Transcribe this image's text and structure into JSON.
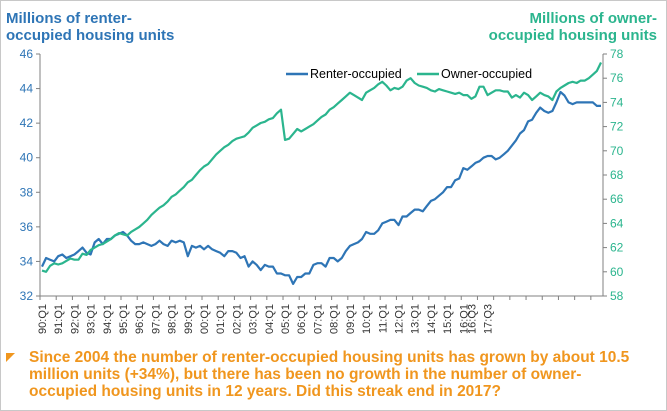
{
  "left_axis_title": [
    "Millions of renter-",
    "occupied housing units"
  ],
  "right_axis_title": [
    "Millions of owner-",
    "occupied housing units"
  ],
  "caption": "Since 2004 the number of renter-occupied housing units has grown by about 10.5 million units (+34%), but there has been no growth in the number of owner-occupied housing units in 12 years. Did this streak end in 2017?",
  "colors": {
    "renter": "#2e75b6",
    "owner": "#2bb58e",
    "caption": "#f0961e",
    "axis": "#808080"
  },
  "chart_data": {
    "type": "line",
    "legend": {
      "placement": "top-right",
      "entries": [
        "Renter-occupied",
        "Owner-occupied"
      ]
    },
    "x_tick_labels": [
      "90:Q1",
      "91:Q1",
      "92:Q1",
      "93:Q1",
      "94:Q1",
      "95:Q1",
      "96:Q1",
      "97:Q1",
      "98:Q1",
      "99:Q1",
      "00:Q1",
      "01:Q1",
      "02:Q1",
      "03:Q1",
      "04:Q1",
      "05:Q1",
      "06:Q1",
      "07:Q1",
      "08:Q1",
      "09:Q1",
      "10:Q1",
      "11:Q1",
      "12:Q1",
      "13:Q1",
      "14:Q1",
      "15:Q1",
      "16:Q1",
      "16:Q3",
      "17:Q3"
    ],
    "x_tick_quarter_index": [
      0,
      4,
      8,
      12,
      16,
      20,
      24,
      28,
      32,
      36,
      40,
      44,
      48,
      52,
      56,
      60,
      64,
      68,
      72,
      76,
      80,
      84,
      88,
      92,
      96,
      100,
      104,
      106,
      110
    ],
    "y_left": {
      "min": 32,
      "max": 46,
      "ticks": [
        32,
        34,
        36,
        38,
        40,
        42,
        44,
        46
      ]
    },
    "y_right": {
      "min": 58,
      "max": 78,
      "ticks": [
        58,
        60,
        62,
        64,
        66,
        68,
        70,
        72,
        74,
        76,
        78
      ]
    },
    "grid": false,
    "series": [
      {
        "name": "Renter-occupied",
        "axis": "left",
        "values": [
          33.7,
          34.2,
          34.1,
          34.0,
          34.3,
          34.4,
          34.2,
          34.3,
          34.4,
          34.6,
          34.8,
          34.5,
          34.4,
          35.1,
          35.3,
          35.0,
          35.3,
          35.3,
          35.5,
          35.6,
          35.7,
          35.5,
          35.2,
          35.0,
          35.0,
          35.1,
          35.0,
          34.9,
          35.0,
          35.2,
          35.0,
          34.9,
          35.2,
          35.1,
          35.2,
          35.1,
          34.3,
          34.9,
          34.8,
          34.9,
          34.7,
          34.9,
          34.7,
          34.6,
          34.5,
          34.3,
          34.6,
          34.6,
          34.5,
          34.2,
          34.3,
          33.7,
          34.0,
          33.8,
          33.5,
          33.8,
          33.7,
          33.7,
          33.3,
          33.3,
          33.2,
          33.2,
          32.7,
          33.1,
          33.1,
          33.3,
          33.3,
          33.8,
          33.9,
          33.9,
          33.7,
          34.2,
          34.2,
          34.0,
          34.2,
          34.6,
          34.9,
          35.0,
          35.1,
          35.3,
          35.7,
          35.6,
          35.6,
          35.8,
          36.2,
          36.3,
          36.4,
          36.4,
          36.1,
          36.6,
          36.6,
          36.8,
          37.0,
          37.0,
          36.9,
          37.2,
          37.5,
          37.6,
          37.8,
          38.0,
          38.3,
          38.3,
          38.7,
          38.8,
          39.4,
          39.3,
          39.5,
          39.7,
          39.8,
          40.0,
          40.1,
          40.1,
          39.9,
          40.0,
          40.2,
          40.4,
          40.7,
          41.0,
          41.4,
          41.6,
          42.1,
          42.2,
          42.6,
          42.9,
          42.7,
          42.6,
          42.7,
          43.2,
          43.8,
          43.6,
          43.2,
          43.1,
          43.2,
          43.2,
          43.2,
          43.2,
          43.2,
          43.0,
          43.0
        ]
      },
      {
        "name": "Owner-occupied",
        "axis": "right",
        "values": [
          60.1,
          60.0,
          60.5,
          60.7,
          60.6,
          60.7,
          60.9,
          61.1,
          61.0,
          61.0,
          61.5,
          61.4,
          61.8,
          62.0,
          62.2,
          62.3,
          62.5,
          62.7,
          63.0,
          63.2,
          63.1,
          63.0,
          63.3,
          63.5,
          63.7,
          64.0,
          64.3,
          64.7,
          65.0,
          65.3,
          65.5,
          65.8,
          66.2,
          66.4,
          66.7,
          67.0,
          67.4,
          67.6,
          68.0,
          68.4,
          68.7,
          68.9,
          69.3,
          69.7,
          70.0,
          70.3,
          70.5,
          70.8,
          71.0,
          71.1,
          71.2,
          71.5,
          71.9,
          72.1,
          72.3,
          72.4,
          72.6,
          72.7,
          73.1,
          73.4,
          70.9,
          71.0,
          71.4,
          71.8,
          71.6,
          71.8,
          72.0,
          72.2,
          72.5,
          72.8,
          73.0,
          73.4,
          73.6,
          73.9,
          74.2,
          74.5,
          74.8,
          74.6,
          74.4,
          74.2,
          74.8,
          75.0,
          75.2,
          75.5,
          75.7,
          75.4,
          75.0,
          75.2,
          75.1,
          75.3,
          75.8,
          76.0,
          75.6,
          75.4,
          75.3,
          75.2,
          75.0,
          74.9,
          75.1,
          75.0,
          74.9,
          74.8,
          74.7,
          74.8,
          74.6,
          74.6,
          74.3,
          74.5,
          75.3,
          75.3,
          74.6,
          74.8,
          75.0,
          75.0,
          74.9,
          74.9,
          74.4,
          74.6,
          74.4,
          74.8,
          74.6,
          74.2,
          74.5,
          74.8,
          74.6,
          74.5,
          74.2,
          74.9,
          75.2,
          75.4,
          75.6,
          75.7,
          75.6,
          75.8,
          75.8,
          76.0,
          76.3,
          76.6,
          77.3
        ]
      }
    ]
  }
}
